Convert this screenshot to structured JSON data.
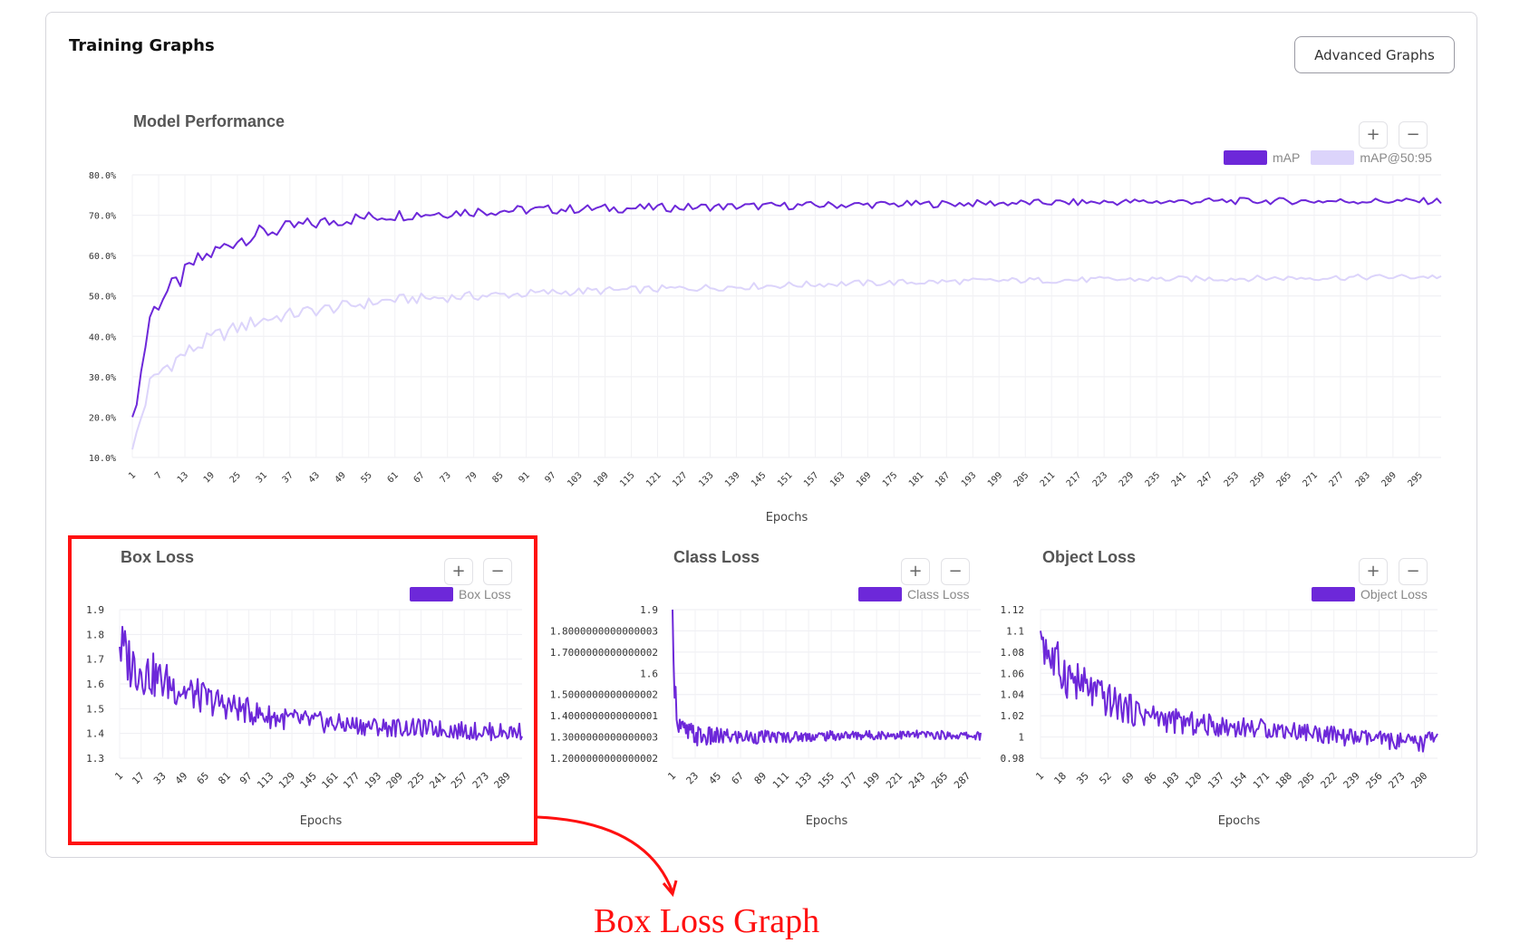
{
  "header": {
    "title": "Training Graphs",
    "advanced_button": "Advanced Graphs"
  },
  "controls": {
    "zoom_in": "+",
    "zoom_out": "−"
  },
  "annotation": {
    "label": "Box Loss Graph"
  },
  "colors": {
    "primary": "#6d28d9",
    "secondary": "#dcd4fb",
    "highlight": "#ff1010"
  },
  "chart_data": [
    {
      "type": "line",
      "title": "Model Performance",
      "xlabel": "Epochs",
      "ylabel": "",
      "x_range": [
        1,
        300
      ],
      "ylim": [
        10,
        80
      ],
      "y_ticks": [
        "80.0%",
        "70.0%",
        "60.0%",
        "50.0%",
        "40.0%",
        "30.0%",
        "20.0%",
        "10.0%"
      ],
      "x_ticks": [
        "1",
        "7",
        "13",
        "19",
        "25",
        "31",
        "37",
        "43",
        "49",
        "55",
        "61",
        "67",
        "73",
        "79",
        "85",
        "91",
        "97",
        "103",
        "109",
        "115",
        "121",
        "127",
        "133",
        "139",
        "145",
        "151",
        "157",
        "163",
        "169",
        "175",
        "181",
        "187",
        "193",
        "199",
        "205",
        "211",
        "217",
        "223",
        "229",
        "235",
        "241",
        "247",
        "253",
        "259",
        "265",
        "271",
        "277",
        "283",
        "289",
        "295"
      ],
      "legend": "top-right",
      "series": [
        {
          "name": "mAP",
          "color": "#6d28d9",
          "points": [
            [
              1,
              20
            ],
            [
              3,
              31
            ],
            [
              5,
              45
            ],
            [
              8,
              50
            ],
            [
              12,
              54
            ],
            [
              15,
              58
            ],
            [
              20,
              61
            ],
            [
              25,
              64
            ],
            [
              30,
              65.5
            ],
            [
              40,
              67.5
            ],
            [
              50,
              69
            ],
            [
              60,
              70
            ],
            [
              80,
              71
            ],
            [
              100,
              71.5
            ],
            [
              130,
              72
            ],
            [
              160,
              72.5
            ],
            [
              200,
              73
            ],
            [
              250,
              73.5
            ],
            [
              300,
              73.5
            ]
          ]
        },
        {
          "name": "mAP@50:95",
          "color": "#dcd4fb",
          "points": [
            [
              1,
              12
            ],
            [
              3,
              20
            ],
            [
              5,
              28
            ],
            [
              8,
              32
            ],
            [
              12,
              35
            ],
            [
              15,
              37
            ],
            [
              20,
              40
            ],
            [
              25,
              42
            ],
            [
              30,
              44
            ],
            [
              40,
              46
            ],
            [
              50,
              47.5
            ],
            [
              60,
              49
            ],
            [
              80,
              50
            ],
            [
              100,
              51
            ],
            [
              130,
              52
            ],
            [
              160,
              53
            ],
            [
              200,
              53.8
            ],
            [
              250,
              54.3
            ],
            [
              300,
              54.8
            ]
          ]
        }
      ]
    },
    {
      "type": "line",
      "title": "Box Loss",
      "xlabel": "Epochs",
      "x_range": [
        1,
        300
      ],
      "ylim": [
        1.3,
        1.9
      ],
      "y_ticks": [
        "1.9",
        "1.8",
        "1.7",
        "1.6",
        "1.5",
        "1.4",
        "1.3"
      ],
      "x_ticks": [
        "1",
        "17",
        "33",
        "49",
        "65",
        "81",
        "97",
        "113",
        "129",
        "145",
        "161",
        "177",
        "193",
        "209",
        "225",
        "241",
        "257",
        "273",
        "289"
      ],
      "legend": "top-right",
      "series": [
        {
          "name": "Box Loss",
          "color": "#6d28d9",
          "points": [
            [
              1,
              1.75
            ],
            [
              10,
              1.68
            ],
            [
              30,
              1.62
            ],
            [
              50,
              1.57
            ],
            [
              70,
              1.53
            ],
            [
              90,
              1.5
            ],
            [
              110,
              1.47
            ],
            [
              130,
              1.455
            ],
            [
              150,
              1.445
            ],
            [
              170,
              1.435
            ],
            [
              200,
              1.425
            ],
            [
              230,
              1.42
            ],
            [
              260,
              1.41
            ],
            [
              290,
              1.405
            ],
            [
              300,
              1.41
            ]
          ]
        }
      ]
    },
    {
      "type": "line",
      "title": "Class Loss",
      "xlabel": "Epochs",
      "x_range": [
        1,
        300
      ],
      "ylim": [
        1.2,
        1.9
      ],
      "y_ticks": [
        "1.9",
        "1.8000000000000003",
        "1.7000000000000002",
        "1.6",
        "1.5000000000000002",
        "1.4000000000000001",
        "1.3000000000000003",
        "1.2000000000000002"
      ],
      "x_ticks": [
        "1",
        "23",
        "45",
        "67",
        "89",
        "111",
        "133",
        "155",
        "177",
        "199",
        "221",
        "243",
        "265",
        "287"
      ],
      "legend": "top-right",
      "series": [
        {
          "name": "Class Loss",
          "color": "#6d28d9",
          "points": [
            [
              1,
              1.9
            ],
            [
              3,
              1.55
            ],
            [
              6,
              1.38
            ],
            [
              12,
              1.32
            ],
            [
              30,
              1.3
            ],
            [
              60,
              1.3
            ],
            [
              100,
              1.3
            ],
            [
              150,
              1.305
            ],
            [
              200,
              1.31
            ],
            [
              250,
              1.31
            ],
            [
              300,
              1.305
            ]
          ]
        }
      ]
    },
    {
      "type": "line",
      "title": "Object Loss",
      "xlabel": "Epochs",
      "x_range": [
        1,
        300
      ],
      "ylim": [
        0.98,
        1.12
      ],
      "y_ticks": [
        "1.12",
        "1.1",
        "1.08",
        "1.06",
        "1.04",
        "1.02",
        "1",
        "0.98"
      ],
      "x_ticks": [
        "1",
        "18",
        "35",
        "52",
        "69",
        "86",
        "103",
        "120",
        "137",
        "154",
        "171",
        "188",
        "205",
        "222",
        "239",
        "256",
        "273",
        "290"
      ],
      "legend": "top-right",
      "series": [
        {
          "name": "Object Loss",
          "color": "#6d28d9",
          "points": [
            [
              1,
              1.1
            ],
            [
              10,
              1.07
            ],
            [
              30,
              1.05
            ],
            [
              50,
              1.035
            ],
            [
              70,
              1.025
            ],
            [
              90,
              1.018
            ],
            [
              110,
              1.013
            ],
            [
              140,
              1.01
            ],
            [
              170,
              1.008
            ],
            [
              200,
              1.005
            ],
            [
              230,
              1.0
            ],
            [
              260,
              0.997
            ],
            [
              290,
              0.993
            ],
            [
              294,
              1.003
            ],
            [
              300,
              1.002
            ]
          ]
        }
      ]
    }
  ]
}
